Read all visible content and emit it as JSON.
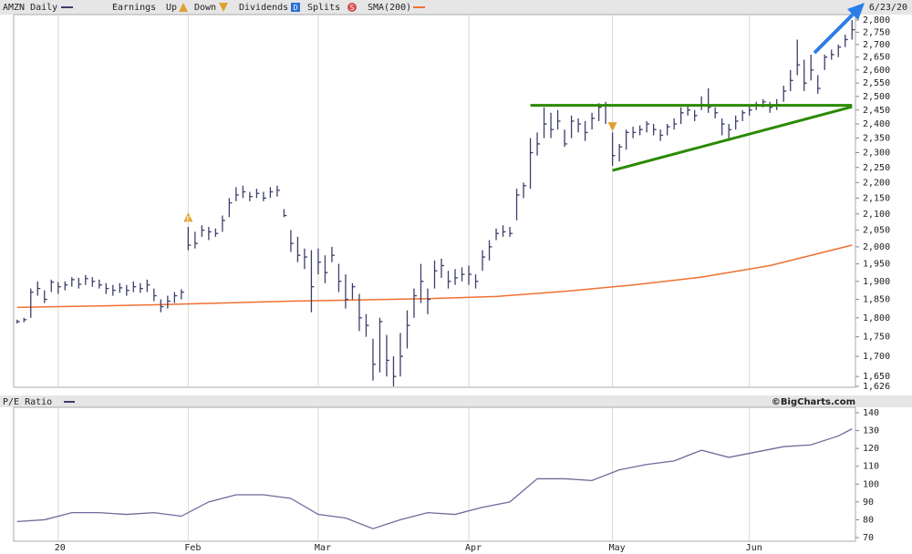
{
  "chart_data": [
    {
      "type": "ohlc",
      "title": "AMZN Daily",
      "date": "6/23/20",
      "legend": {
        "earnings": "Earnings",
        "up": "Up",
        "down": "Down",
        "dividends": "Dividends",
        "splits": "Splits",
        "up_icon": "E",
        "dividends_icon": "D",
        "splits_icon": "S"
      },
      "log_scale": true,
      "grid": "x",
      "xlim": [
        -0.5,
        122.5
      ],
      "xticks": [
        {
          "value": 6,
          "label": "20"
        },
        {
          "value": 25,
          "label": "Feb"
        },
        {
          "value": 44,
          "label": "Mar"
        },
        {
          "value": 66,
          "label": "Apr"
        },
        {
          "value": 87,
          "label": "May"
        },
        {
          "value": 107,
          "label": "Jun"
        }
      ],
      "ylim": [
        1626,
        2800
      ],
      "yticks": [
        {
          "value": 1626,
          "label": "1,626"
        },
        {
          "value": 1650,
          "label": "1,650"
        },
        {
          "value": 1700,
          "label": "1,700"
        },
        {
          "value": 1750,
          "label": "1,750"
        },
        {
          "value": 1800,
          "label": "1,800"
        },
        {
          "value": 1850,
          "label": "1,850"
        },
        {
          "value": 1900,
          "label": "1,900"
        },
        {
          "value": 1950,
          "label": "1,950"
        },
        {
          "value": 2000,
          "label": "2,000"
        },
        {
          "value": 2050,
          "label": "2,050"
        },
        {
          "value": 2100,
          "label": "2,100"
        },
        {
          "value": 2150,
          "label": "2,150"
        },
        {
          "value": 2200,
          "label": "2,200"
        },
        {
          "value": 2250,
          "label": "2,250"
        },
        {
          "value": 2300,
          "label": "2,300"
        },
        {
          "value": 2350,
          "label": "2,350"
        },
        {
          "value": 2400,
          "label": "2,400"
        },
        {
          "value": 2450,
          "label": "2,450"
        },
        {
          "value": 2500,
          "label": "2,500"
        },
        {
          "value": 2550,
          "label": "2,550"
        },
        {
          "value": 2600,
          "label": "2,600"
        },
        {
          "value": 2650,
          "label": "2,650"
        },
        {
          "value": 2700,
          "label": "2,700"
        },
        {
          "value": 2750,
          "label": "2,750"
        },
        {
          "value": 2800,
          "label": "2,800"
        }
      ],
      "bars": {
        "color": "#3d3d6e",
        "high": [
          1795,
          1800,
          1880,
          1900,
          1875,
          1905,
          1898,
          1900,
          1912,
          1910,
          1918,
          1912,
          1905,
          1895,
          1890,
          1895,
          1890,
          1900,
          1895,
          1905,
          1880,
          1850,
          1860,
          1870,
          1878,
          2060,
          2045,
          2065,
          2060,
          2055,
          2095,
          2150,
          2185,
          2190,
          2170,
          2180,
          2170,
          2185,
          2190,
          2115,
          2050,
          2030,
          1995,
          1990,
          1995,
          1975,
          2000,
          1950,
          1920,
          1895,
          1865,
          1810,
          1745,
          1800,
          1755,
          1700,
          1760,
          1820,
          1880,
          1950,
          1880,
          1960,
          1965,
          1930,
          1935,
          1940,
          1945,
          1920,
          1990,
          2020,
          2055,
          2065,
          2060,
          2180,
          2200,
          2350,
          2370,
          2460,
          2440,
          2450,
          2380,
          2430,
          2420,
          2410,
          2440,
          2475,
          2480,
          2370,
          2330,
          2380,
          2390,
          2395,
          2410,
          2400,
          2380,
          2400,
          2420,
          2460,
          2470,
          2450,
          2500,
          2530,
          2460,
          2420,
          2400,
          2430,
          2450,
          2470,
          2480,
          2490,
          2480,
          2490,
          2540,
          2600,
          2720,
          2640,
          2660,
          2580,
          2660,
          2680,
          2700,
          2740,
          2800
        ],
        "low": [
          1785,
          1788,
          1800,
          1860,
          1840,
          1870,
          1865,
          1875,
          1885,
          1880,
          1890,
          1885,
          1880,
          1865,
          1860,
          1868,
          1860,
          1870,
          1868,
          1870,
          1845,
          1815,
          1825,
          1840,
          1850,
          1990,
          1995,
          2030,
          2020,
          2030,
          2045,
          2090,
          2140,
          2150,
          2140,
          2150,
          2140,
          2150,
          2155,
          2090,
          1985,
          1955,
          1935,
          1815,
          1920,
          1895,
          1955,
          1870,
          1825,
          1850,
          1765,
          1750,
          1640,
          1660,
          1650,
          1626,
          1650,
          1720,
          1800,
          1840,
          1810,
          1880,
          1910,
          1880,
          1890,
          1900,
          1890,
          1880,
          1930,
          1960,
          2020,
          2030,
          2030,
          2080,
          2150,
          2180,
          2290,
          2350,
          2350,
          2380,
          2320,
          2350,
          2370,
          2340,
          2380,
          2410,
          2400,
          2255,
          2270,
          2310,
          2350,
          2360,
          2370,
          2360,
          2340,
          2360,
          2380,
          2400,
          2430,
          2410,
          2450,
          2440,
          2420,
          2360,
          2340,
          2380,
          2410,
          2430,
          2450,
          2460,
          2440,
          2450,
          2480,
          2520,
          2580,
          2520,
          2560,
          2510,
          2600,
          2640,
          2650,
          2690,
          2720
        ],
        "close": [
          1790,
          1795,
          1870,
          1880,
          1850,
          1898,
          1885,
          1890,
          1905,
          1892,
          1908,
          1900,
          1890,
          1880,
          1875,
          1882,
          1875,
          1885,
          1880,
          1890,
          1860,
          1830,
          1845,
          1860,
          1870,
          2005,
          2010,
          2050,
          2045,
          2040,
          2080,
          2135,
          2160,
          2170,
          2155,
          2165,
          2150,
          2170,
          2175,
          2095,
          2010,
          1975,
          1970,
          1885,
          1955,
          1925,
          1975,
          1900,
          1850,
          1885,
          1800,
          1780,
          1680,
          1790,
          1690,
          1650,
          1700,
          1780,
          1860,
          1900,
          1850,
          1930,
          1945,
          1900,
          1910,
          1920,
          1920,
          1900,
          1970,
          2000,
          2040,
          2045,
          2040,
          2160,
          2190,
          2300,
          2330,
          2400,
          2380,
          2410,
          2330,
          2410,
          2400,
          2370,
          2420,
          2460,
          2470,
          2290,
          2320,
          2370,
          2370,
          2380,
          2400,
          2380,
          2360,
          2390,
          2400,
          2440,
          2450,
          2430,
          2470,
          2460,
          2440,
          2400,
          2380,
          2410,
          2440,
          2450,
          2470,
          2480,
          2460,
          2470,
          2520,
          2560,
          2620,
          2550,
          2600,
          2530,
          2650,
          2660,
          2690,
          2720,
          2760
        ]
      },
      "sma": {
        "name": "SMA(200)",
        "color": "#f07030",
        "x": [
          0,
          20,
          40,
          60,
          70,
          80,
          90,
          100,
          110,
          122
        ],
        "values": [
          1828,
          1835,
          1845,
          1852,
          1858,
          1872,
          1890,
          1912,
          1945,
          2005
        ]
      },
      "markers": [
        {
          "x": 25,
          "kind": "up",
          "value": 2090
        },
        {
          "x": 87,
          "kind": "down",
          "value": 2390
        }
      ],
      "trendlines": [
        {
          "color": "#2a8a00",
          "x": [
            75,
            122
          ],
          "values": [
            2467,
            2467
          ]
        },
        {
          "color": "#2a8a00",
          "x": [
            87,
            122
          ],
          "values": [
            2240,
            2462
          ]
        }
      ]
    },
    {
      "type": "line",
      "title": "P/E Ratio",
      "credit": "©BigCharts.com",
      "grid": "x",
      "xlim": [
        -0.5,
        122.5
      ],
      "ylim": [
        70,
        140
      ],
      "yticks": [
        70,
        80,
        90,
        100,
        110,
        120,
        130,
        140
      ],
      "series": [
        {
          "color": "#6c6c9c",
          "x": [
            0,
            4,
            8,
            12,
            16,
            20,
            24,
            28,
            32,
            36,
            40,
            44,
            48,
            52,
            56,
            60,
            64,
            68,
            72,
            76,
            80,
            84,
            88,
            92,
            96,
            100,
            104,
            108,
            112,
            116,
            120,
            122
          ],
          "values": [
            79,
            80,
            84,
            84,
            83,
            84,
            82,
            90,
            94,
            94,
            92,
            83,
            81,
            75,
            80,
            84,
            83,
            87,
            90,
            103,
            103,
            102,
            108,
            111,
            113,
            119,
            115,
            118,
            121,
            122,
            127,
            131
          ]
        }
      ]
    }
  ]
}
